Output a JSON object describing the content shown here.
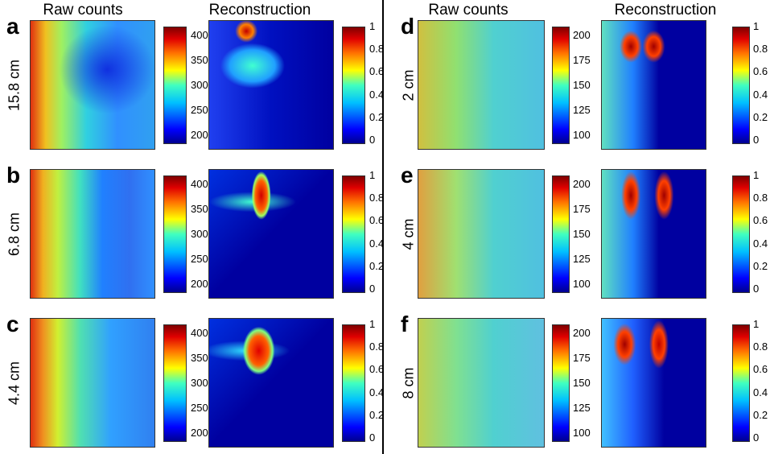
{
  "halves": [
    {
      "headers": [
        "Raw counts",
        "Reconstruction"
      ],
      "panels": [
        {
          "letter": "a",
          "label": "15.8 cm",
          "raw_ticks": [
            400,
            350,
            300,
            250,
            200
          ],
          "recon_ticks": [
            1,
            0.8,
            0.6,
            0.4,
            0.2,
            0
          ]
        },
        {
          "letter": "b",
          "label": "6.8 cm",
          "raw_ticks": [
            400,
            350,
            300,
            250,
            200
          ],
          "recon_ticks": [
            1,
            0.8,
            0.6,
            0.4,
            0.2,
            0
          ]
        },
        {
          "letter": "c",
          "label": "4.4 cm",
          "raw_ticks": [
            400,
            350,
            300,
            250,
            200
          ],
          "recon_ticks": [
            1,
            0.8,
            0.6,
            0.4,
            0.2,
            0
          ]
        }
      ]
    },
    {
      "headers": [
        "Raw counts",
        "Reconstruction"
      ],
      "panels": [
        {
          "letter": "d",
          "label": "2 cm",
          "raw_ticks": [
            200,
            175,
            150,
            125,
            100
          ],
          "recon_ticks": [
            1,
            0.8,
            0.6,
            0.4,
            0.2,
            0
          ]
        },
        {
          "letter": "e",
          "label": "4 cm",
          "raw_ticks": [
            200,
            175,
            150,
            125,
            100
          ],
          "recon_ticks": [
            1,
            0.8,
            0.6,
            0.4,
            0.2,
            0
          ]
        },
        {
          "letter": "f",
          "label": "8 cm",
          "raw_ticks": [
            200,
            175,
            150,
            125,
            100
          ],
          "recon_ticks": [
            1,
            0.8,
            0.6,
            0.4,
            0.2,
            0
          ]
        }
      ]
    }
  ]
}
